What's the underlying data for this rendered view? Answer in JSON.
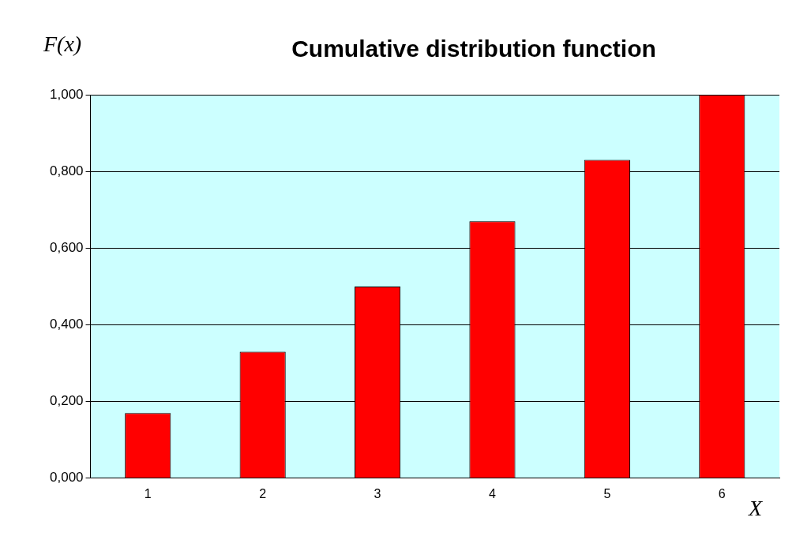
{
  "chart_data": {
    "type": "bar",
    "title": "Cumulative distribution function",
    "ylabel": "F(x)",
    "xlabel": "X",
    "categories": [
      "1",
      "2",
      "3",
      "4",
      "5",
      "6"
    ],
    "values": [
      0.17,
      0.33,
      0.5,
      0.67,
      0.83,
      1
    ],
    "color": "#ff0000",
    "ylim": [
      0,
      1
    ],
    "yticks": [
      {
        "value": 0,
        "label": "0,000"
      },
      {
        "value": 0.2,
        "label": "0,200"
      },
      {
        "value": 0.4,
        "label": "0,400"
      },
      {
        "value": 0.6,
        "label": "0,600"
      },
      {
        "value": 0.8,
        "label": "0,800"
      },
      {
        "value": 1,
        "label": "1,000"
      }
    ],
    "grid": "y",
    "legend": false
  }
}
